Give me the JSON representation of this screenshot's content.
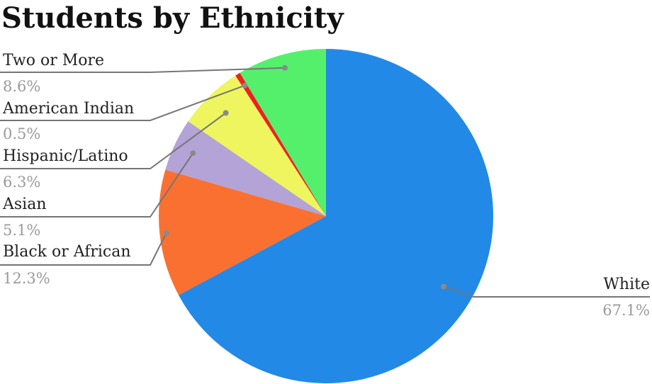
{
  "chart_data": {
    "type": "pie",
    "title": "Students by Ethnicity",
    "start": "top",
    "direction": "clockwise",
    "slices": [
      {
        "label": "White",
        "value": 67.1,
        "display": "67.1%",
        "color": "#2389e6"
      },
      {
        "label": "Black or African",
        "value": 12.3,
        "display": "12.3%",
        "color": "#fa7031"
      },
      {
        "label": "Asian",
        "value": 5.1,
        "display": "5.1%",
        "color": "#b3a3d6"
      },
      {
        "label": "Hispanic/Latino",
        "value": 6.3,
        "display": "6.3%",
        "color": "#eef55e"
      },
      {
        "label": "American Indian",
        "value": 0.5,
        "display": "0.5%",
        "color": "#ee2020"
      },
      {
        "label": "Two or More",
        "value": 8.6,
        "display": "8.6%",
        "color": "#55f06b"
      }
    ]
  }
}
